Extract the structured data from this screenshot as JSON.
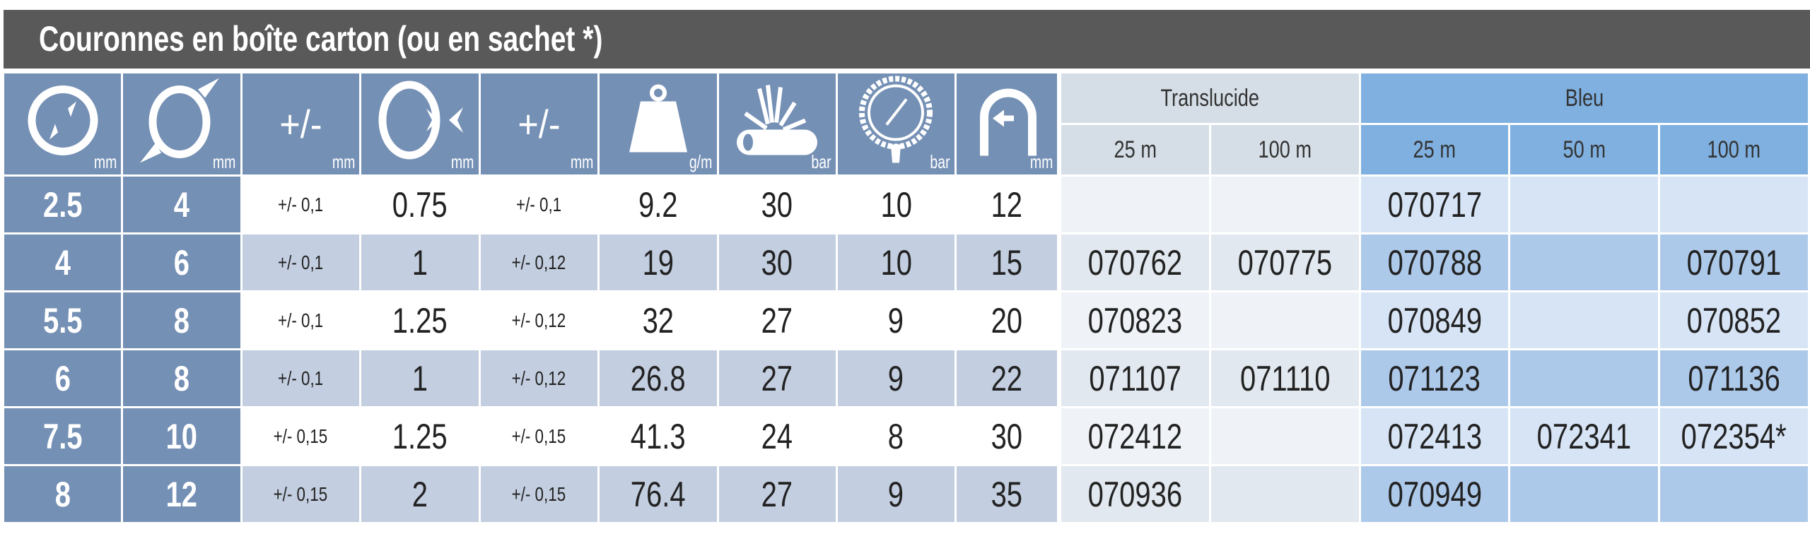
{
  "title": "Couronnes en boîte carton (ou en sachet *)",
  "header": {
    "icons": [
      {
        "icon": "inner-diameter-icon",
        "unit": "mm"
      },
      {
        "icon": "outer-diameter-icon",
        "unit": "mm"
      },
      {
        "icon": "tolerance",
        "label": "+/-",
        "unit": "mm"
      },
      {
        "icon": "wall-thickness-icon",
        "unit": "mm"
      },
      {
        "icon": "tolerance",
        "label": "+/-",
        "unit": "mm"
      },
      {
        "icon": "weight-icon",
        "unit": "g/m"
      },
      {
        "icon": "burst-pressure-icon",
        "unit": "bar"
      },
      {
        "icon": "pressure-gauge-icon",
        "unit": "bar"
      },
      {
        "icon": "bend-radius-icon",
        "unit": "mm"
      }
    ],
    "groups": [
      {
        "label": "Translucide",
        "lengths": [
          "25 m",
          "100 m"
        ]
      },
      {
        "label": "Bleu",
        "lengths": [
          "25 m",
          "50 m",
          "100 m"
        ]
      }
    ]
  },
  "rows": [
    {
      "cells": [
        "2.5",
        "4",
        "+/- 0,1",
        "0.75",
        "+/- 0,1",
        "9.2",
        "30",
        "10",
        "12"
      ],
      "translucide": [
        "",
        ""
      ],
      "bleu": [
        "070717",
        "",
        ""
      ]
    },
    {
      "cells": [
        "4",
        "6",
        "+/- 0,1",
        "1",
        "+/- 0,12",
        "19",
        "30",
        "10",
        "15"
      ],
      "translucide": [
        "070762",
        "070775"
      ],
      "bleu": [
        "070788",
        "",
        "070791"
      ]
    },
    {
      "cells": [
        "5.5",
        "8",
        "+/- 0,1",
        "1.25",
        "+/- 0,12",
        "32",
        "27",
        "9",
        "20"
      ],
      "translucide": [
        "070823",
        ""
      ],
      "bleu": [
        "070849",
        "",
        "070852"
      ]
    },
    {
      "cells": [
        "6",
        "8",
        "+/- 0,1",
        "1",
        "+/- 0,12",
        "26.8",
        "27",
        "9",
        "22"
      ],
      "translucide": [
        "071107",
        "071110"
      ],
      "bleu": [
        "071123",
        "",
        "071136"
      ]
    },
    {
      "cells": [
        "7.5",
        "10",
        "+/- 0,15",
        "1.25",
        "+/- 0,15",
        "41.3",
        "24",
        "8",
        "30"
      ],
      "translucide": [
        "072412",
        ""
      ],
      "bleu": [
        "072413",
        "072341",
        "072354*"
      ]
    },
    {
      "cells": [
        "8",
        "12",
        "+/- 0,15",
        "2",
        "+/- 0,15",
        "76.4",
        "27",
        "9",
        "35"
      ],
      "translucide": [
        "070936",
        ""
      ],
      "bleu": [
        "070949",
        "",
        ""
      ]
    }
  ],
  "colors": {
    "title_bar": "#595959",
    "header_blue": "#7590b5",
    "translucide": "#d5dee6",
    "bleu": "#7fb0e0"
  }
}
